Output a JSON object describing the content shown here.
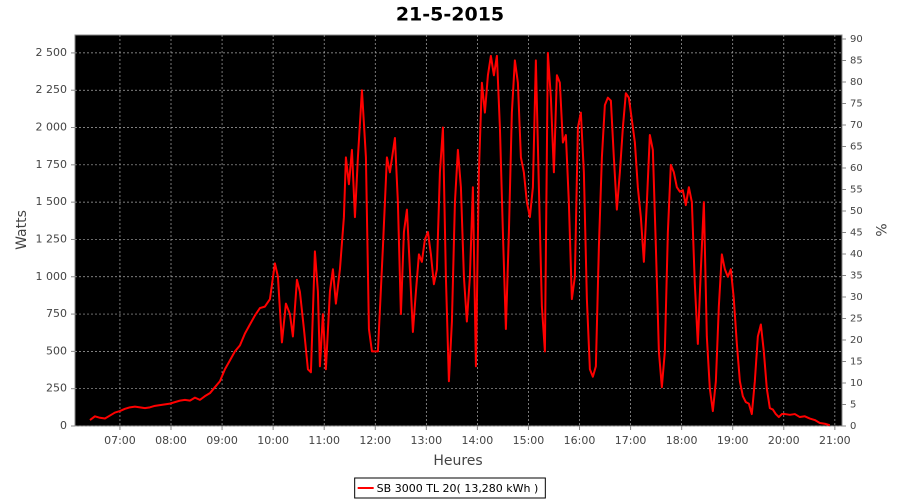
{
  "chart_data": {
    "type": "line",
    "title": "21-5-2015",
    "x_label": "Heures",
    "y_label": "Watts",
    "y2_label": "%",
    "xlim": [
      6.12,
      21.14
    ],
    "ylim": [
      0,
      2620
    ],
    "y2lim": [
      0,
      90.93
    ],
    "xticks": [
      {
        "value": 7,
        "label": "07:00"
      },
      {
        "value": 8,
        "label": "08:00"
      },
      {
        "value": 9,
        "label": "09:00"
      },
      {
        "value": 10,
        "label": "10:00"
      },
      {
        "value": 11,
        "label": "11:00"
      },
      {
        "value": 12,
        "label": "12:00"
      },
      {
        "value": 13,
        "label": "13:00"
      },
      {
        "value": 14,
        "label": "14:00"
      },
      {
        "value": 15,
        "label": "15:00"
      },
      {
        "value": 16,
        "label": "16:00"
      },
      {
        "value": 17,
        "label": "17:00"
      },
      {
        "value": 18,
        "label": "18:00"
      },
      {
        "value": 19,
        "label": "19:00"
      },
      {
        "value": 20,
        "label": "20:00"
      },
      {
        "value": 21,
        "label": "21:00"
      }
    ],
    "yticks": [
      0,
      250,
      500,
      750,
      {
        "value": 1000,
        "label": "1 000"
      },
      {
        "value": 1250,
        "label": "1 250"
      },
      {
        "value": 1500,
        "label": "1 500"
      },
      {
        "value": 1750,
        "label": "1 750"
      },
      {
        "value": 2000,
        "label": "2 000"
      },
      {
        "value": 2250,
        "label": "2 250"
      },
      {
        "value": 2500,
        "label": "2 500"
      }
    ],
    "y2ticks": [
      0,
      5,
      10,
      15,
      20,
      25,
      30,
      35,
      40,
      45,
      50,
      55,
      60,
      65,
      70,
      75,
      80,
      85,
      90
    ],
    "grid": true,
    "x": [
      6.413,
      6.51,
      6.608,
      6.706,
      6.804,
      6.902,
      7.0,
      7.098,
      7.196,
      7.294,
      7.392,
      7.49,
      7.587,
      7.685,
      7.783,
      7.881,
      7.979,
      8.077,
      8.175,
      8.273,
      8.371,
      8.469,
      8.566,
      8.664,
      8.762,
      8.86,
      8.958,
      9.056,
      9.154,
      9.252,
      9.35,
      9.448,
      9.545,
      9.643,
      9.741,
      9.839,
      9.937,
      10.035,
      10.094,
      10.172,
      10.25,
      10.329,
      10.387,
      10.466,
      10.524,
      10.603,
      10.681,
      10.74,
      10.818,
      10.877,
      10.916,
      10.975,
      11.033,
      11.112,
      11.171,
      11.229,
      11.308,
      11.386,
      11.425,
      11.484,
      11.543,
      11.602,
      11.66,
      11.739,
      11.817,
      11.876,
      11.935,
      12.052,
      12.15,
      12.228,
      12.287,
      12.385,
      12.443,
      12.502,
      12.561,
      12.62,
      12.678,
      12.737,
      12.796,
      12.855,
      12.913,
      12.972,
      13.031,
      13.09,
      13.148,
      13.207,
      13.266,
      13.325,
      13.383,
      13.442,
      13.501,
      13.56,
      13.618,
      13.677,
      13.736,
      13.794,
      13.853,
      13.912,
      13.971,
      14.029,
      14.088,
      14.147,
      14.206,
      14.264,
      14.323,
      14.382,
      14.441,
      14.499,
      14.558,
      14.617,
      14.675,
      14.734,
      14.793,
      14.852,
      14.91,
      14.969,
      15.028,
      15.087,
      15.145,
      15.204,
      15.263,
      15.322,
      15.38,
      15.439,
      15.498,
      15.557,
      15.615,
      15.674,
      15.733,
      15.791,
      15.85,
      15.909,
      15.968,
      16.026,
      16.085,
      16.144,
      16.203,
      16.261,
      16.32,
      16.379,
      16.438,
      16.496,
      16.555,
      16.614,
      16.672,
      16.731,
      16.79,
      16.849,
      16.907,
      16.966,
      17.025,
      17.084,
      17.142,
      17.201,
      17.26,
      17.319,
      17.377,
      17.436,
      17.495,
      17.554,
      17.612,
      17.671,
      17.73,
      17.788,
      17.847,
      17.906,
      17.965,
      18.023,
      18.082,
      18.141,
      18.2,
      18.258,
      18.317,
      18.376,
      18.435,
      18.493,
      18.552,
      18.611,
      18.67,
      18.728,
      18.787,
      18.846,
      18.905,
      18.963,
      19.022,
      19.081,
      19.14,
      19.198,
      19.257,
      19.316,
      19.374,
      19.433,
      19.492,
      19.551,
      19.609,
      19.668,
      19.727,
      19.786,
      19.844,
      19.903,
      19.962,
      20.021,
      20.119,
      20.217,
      20.314,
      20.412,
      20.51,
      20.608,
      20.706,
      20.804,
      20.902
    ],
    "series": [
      {
        "name": "SB 3000 TL 20( 13,280 kWh )",
        "color": "#ff0000",
        "values": [
          40,
          65,
          55,
          50,
          70,
          90,
          100,
          115,
          125,
          130,
          125,
          120,
          125,
          135,
          140,
          145,
          150,
          160,
          170,
          175,
          170,
          190,
          175,
          200,
          220,
          260,
          300,
          380,
          440,
          500,
          540,
          620,
          680,
          740,
          790,
          800,
          850,
          1090,
          1000,
          560,
          820,
          750,
          600,
          980,
          900,
          650,
          380,
          360,
          1170,
          900,
          400,
          750,
          380,
          900,
          1050,
          820,
          1050,
          1400,
          1800,
          1620,
          1850,
          1400,
          1800,
          2250,
          1800,
          650,
          500,
          500,
          1200,
          1800,
          1700,
          1930,
          1500,
          750,
          1300,
          1450,
          1050,
          630,
          900,
          1150,
          1100,
          1250,
          1300,
          1150,
          950,
          1050,
          1700,
          2000,
          1000,
          300,
          700,
          1500,
          1850,
          1600,
          1000,
          700,
          1000,
          1600,
          400,
          1700,
          2300,
          2100,
          2350,
          2480,
          2350,
          2480,
          2000,
          1300,
          650,
          1300,
          2100,
          2450,
          2300,
          1800,
          1700,
          1500,
          1400,
          1600,
          2450,
          1600,
          800,
          500,
          2500,
          2200,
          1700,
          2350,
          2300,
          1900,
          1950,
          1500,
          850,
          1000,
          2000,
          2100,
          1700,
          850,
          380,
          330,
          400,
          1200,
          1800,
          2150,
          2200,
          2180,
          1800,
          1450,
          1700,
          2000,
          2230,
          2200,
          2050,
          1900,
          1600,
          1400,
          1100,
          1500,
          1950,
          1850,
          1200,
          500,
          260,
          500,
          1300,
          1750,
          1700,
          1600,
          1570,
          1580,
          1480,
          1600,
          1500,
          950,
          550,
          1050,
          1500,
          600,
          250,
          100,
          300,
          800,
          1150,
          1050,
          1000,
          1050,
          850,
          550,
          300,
          200,
          160,
          150,
          80,
          300,
          600,
          680,
          500,
          250,
          120,
          110,
          80,
          60,
          80,
          80,
          75,
          80,
          60,
          65,
          50,
          40,
          20,
          15,
          5
        ]
      }
    ]
  }
}
